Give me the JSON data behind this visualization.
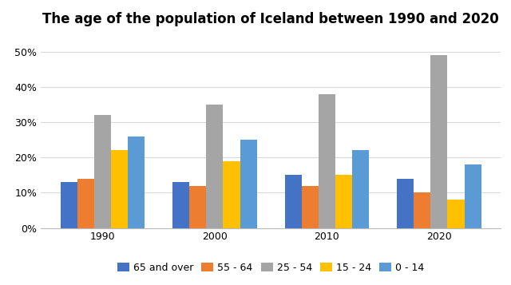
{
  "title": "The age of the population of Iceland between 1990 and 2020",
  "years": [
    "1990",
    "2000",
    "2010",
    "2020"
  ],
  "categories": [
    "65 and over",
    "55 - 64",
    "25 - 54",
    "15 - 24",
    "0 - 14"
  ],
  "colors": [
    "#4472c4",
    "#ed7d31",
    "#a5a5a5",
    "#ffc000",
    "#5b9bd5"
  ],
  "values": {
    "65 and over": [
      13,
      13,
      15,
      14
    ],
    "55 - 64": [
      14,
      12,
      12,
      10
    ],
    "25 - 54": [
      32,
      35,
      38,
      49
    ],
    "15 - 24": [
      22,
      19,
      15,
      8
    ],
    "0 - 14": [
      26,
      25,
      22,
      18
    ]
  },
  "ylim": [
    0,
    55
  ],
  "yticks": [
    0,
    10,
    20,
    30,
    40,
    50
  ],
  "ytick_labels": [
    "0%",
    "10%",
    "20%",
    "30%",
    "40%",
    "50%"
  ],
  "background_color": "#ffffff",
  "grid_color": "#d9d9d9",
  "title_fontsize": 12,
  "axis_fontsize": 9,
  "legend_fontsize": 9
}
